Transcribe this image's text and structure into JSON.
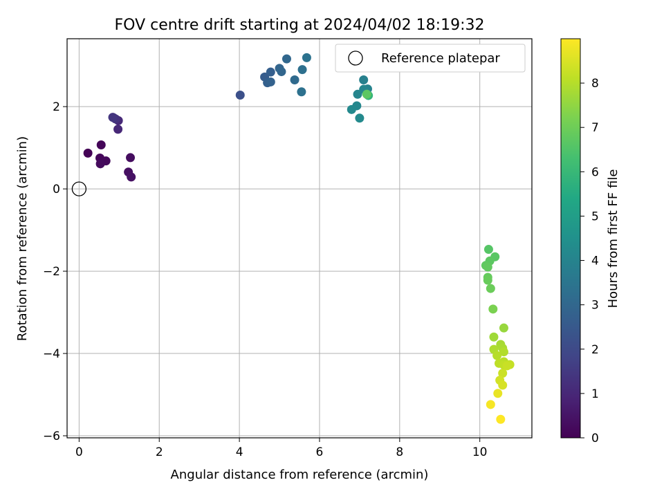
{
  "chart_data": {
    "type": "scatter",
    "title": "FOV centre drift starting at 2024/04/02 18:19:32",
    "xlabel": "Angular distance from reference (arcmin)",
    "ylabel": "Rotation from reference (arcmin)",
    "xlim": [
      -0.3,
      11.3
    ],
    "ylim": [
      -6.05,
      3.65
    ],
    "x_ticks": [
      0,
      2,
      4,
      6,
      8,
      10
    ],
    "y_ticks": [
      -6,
      -4,
      -2,
      0,
      2
    ],
    "grid": true,
    "legend": {
      "placement": "top-right",
      "entries": [
        "Reference platepar"
      ]
    },
    "colorbar": {
      "label": "Hours from first FF file",
      "range": [
        0,
        9.0
      ],
      "ticks": [
        0,
        1,
        2,
        3,
        4,
        5,
        6,
        7,
        8
      ],
      "colormap": "viridis"
    },
    "reference_point": {
      "x": 0,
      "y": 0,
      "name": "Reference platepar"
    },
    "points": [
      {
        "x": 0.22,
        "y": 0.87,
        "hours": 0.05
      },
      {
        "x": 0.55,
        "y": 1.07,
        "hours": 0.1
      },
      {
        "x": 0.52,
        "y": 0.75,
        "hours": 0.15
      },
      {
        "x": 0.67,
        "y": 0.68,
        "hours": 0.2
      },
      {
        "x": 0.53,
        "y": 0.61,
        "hours": 0.25
      },
      {
        "x": 1.28,
        "y": 0.76,
        "hours": 0.3
      },
      {
        "x": 1.23,
        "y": 0.41,
        "hours": 0.35
      },
      {
        "x": 1.3,
        "y": 0.29,
        "hours": 0.4
      },
      {
        "x": 0.97,
        "y": 1.45,
        "hours": 1.0
      },
      {
        "x": 0.98,
        "y": 1.66,
        "hours": 1.05
      },
      {
        "x": 0.86,
        "y": 1.73,
        "hours": 1.1
      },
      {
        "x": 0.91,
        "y": 1.7,
        "hours": 1.3
      },
      {
        "x": 0.84,
        "y": 1.74,
        "hours": 1.4
      },
      {
        "x": 4.02,
        "y": 2.28,
        "hours": 2.2
      },
      {
        "x": 4.63,
        "y": 2.72,
        "hours": 2.6
      },
      {
        "x": 4.78,
        "y": 2.84,
        "hours": 2.7
      },
      {
        "x": 4.7,
        "y": 2.58,
        "hours": 2.75
      },
      {
        "x": 4.78,
        "y": 2.6,
        "hours": 2.8
      },
      {
        "x": 5.0,
        "y": 2.93,
        "hours": 2.9
      },
      {
        "x": 5.05,
        "y": 2.85,
        "hours": 2.95
      },
      {
        "x": 5.18,
        "y": 3.16,
        "hours": 3.0
      },
      {
        "x": 5.38,
        "y": 2.65,
        "hours": 3.1
      },
      {
        "x": 5.57,
        "y": 2.9,
        "hours": 3.3
      },
      {
        "x": 5.55,
        "y": 2.36,
        "hours": 3.35
      },
      {
        "x": 5.68,
        "y": 3.19,
        "hours": 3.4
      },
      {
        "x": 7.1,
        "y": 2.65,
        "hours": 3.9
      },
      {
        "x": 7.2,
        "y": 2.43,
        "hours": 4.0
      },
      {
        "x": 6.95,
        "y": 2.3,
        "hours": 4.05
      },
      {
        "x": 7.1,
        "y": 2.42,
        "hours": 4.1
      },
      {
        "x": 6.93,
        "y": 2.02,
        "hours": 4.15
      },
      {
        "x": 6.8,
        "y": 1.93,
        "hours": 4.2
      },
      {
        "x": 7.0,
        "y": 1.72,
        "hours": 4.25
      },
      {
        "x": 7.22,
        "y": 2.27,
        "hours": 5.9
      },
      {
        "x": 7.18,
        "y": 2.3,
        "hours": 6.7
      },
      {
        "x": 10.22,
        "y": -1.47,
        "hours": 6.6
      },
      {
        "x": 10.38,
        "y": -1.65,
        "hours": 6.65
      },
      {
        "x": 10.25,
        "y": -1.75,
        "hours": 6.7
      },
      {
        "x": 10.15,
        "y": -1.86,
        "hours": 6.75
      },
      {
        "x": 10.2,
        "y": -1.9,
        "hours": 6.8
      },
      {
        "x": 10.2,
        "y": -2.15,
        "hours": 6.85
      },
      {
        "x": 10.2,
        "y": -2.22,
        "hours": 6.9
      },
      {
        "x": 10.27,
        "y": -2.42,
        "hours": 6.95
      },
      {
        "x": 10.33,
        "y": -2.92,
        "hours": 7.2
      },
      {
        "x": 10.6,
        "y": -3.38,
        "hours": 7.6
      },
      {
        "x": 10.35,
        "y": -3.6,
        "hours": 7.7
      },
      {
        "x": 10.52,
        "y": -3.78,
        "hours": 7.8
      },
      {
        "x": 10.57,
        "y": -3.87,
        "hours": 7.85
      },
      {
        "x": 10.35,
        "y": -3.9,
        "hours": 7.9
      },
      {
        "x": 10.6,
        "y": -3.96,
        "hours": 7.95
      },
      {
        "x": 10.43,
        "y": -4.05,
        "hours": 8.0
      },
      {
        "x": 10.6,
        "y": -4.2,
        "hours": 8.05
      },
      {
        "x": 10.48,
        "y": -4.24,
        "hours": 8.1
      },
      {
        "x": 10.6,
        "y": -4.28,
        "hours": 8.15
      },
      {
        "x": 10.75,
        "y": -4.27,
        "hours": 8.2
      },
      {
        "x": 10.68,
        "y": -4.3,
        "hours": 8.25
      },
      {
        "x": 10.57,
        "y": -4.48,
        "hours": 8.3
      },
      {
        "x": 10.5,
        "y": -4.65,
        "hours": 8.4
      },
      {
        "x": 10.57,
        "y": -4.77,
        "hours": 8.45
      },
      {
        "x": 10.45,
        "y": -4.97,
        "hours": 8.7
      },
      {
        "x": 10.27,
        "y": -5.24,
        "hours": 8.9
      },
      {
        "x": 10.52,
        "y": -5.6,
        "hours": 9.0
      }
    ]
  }
}
